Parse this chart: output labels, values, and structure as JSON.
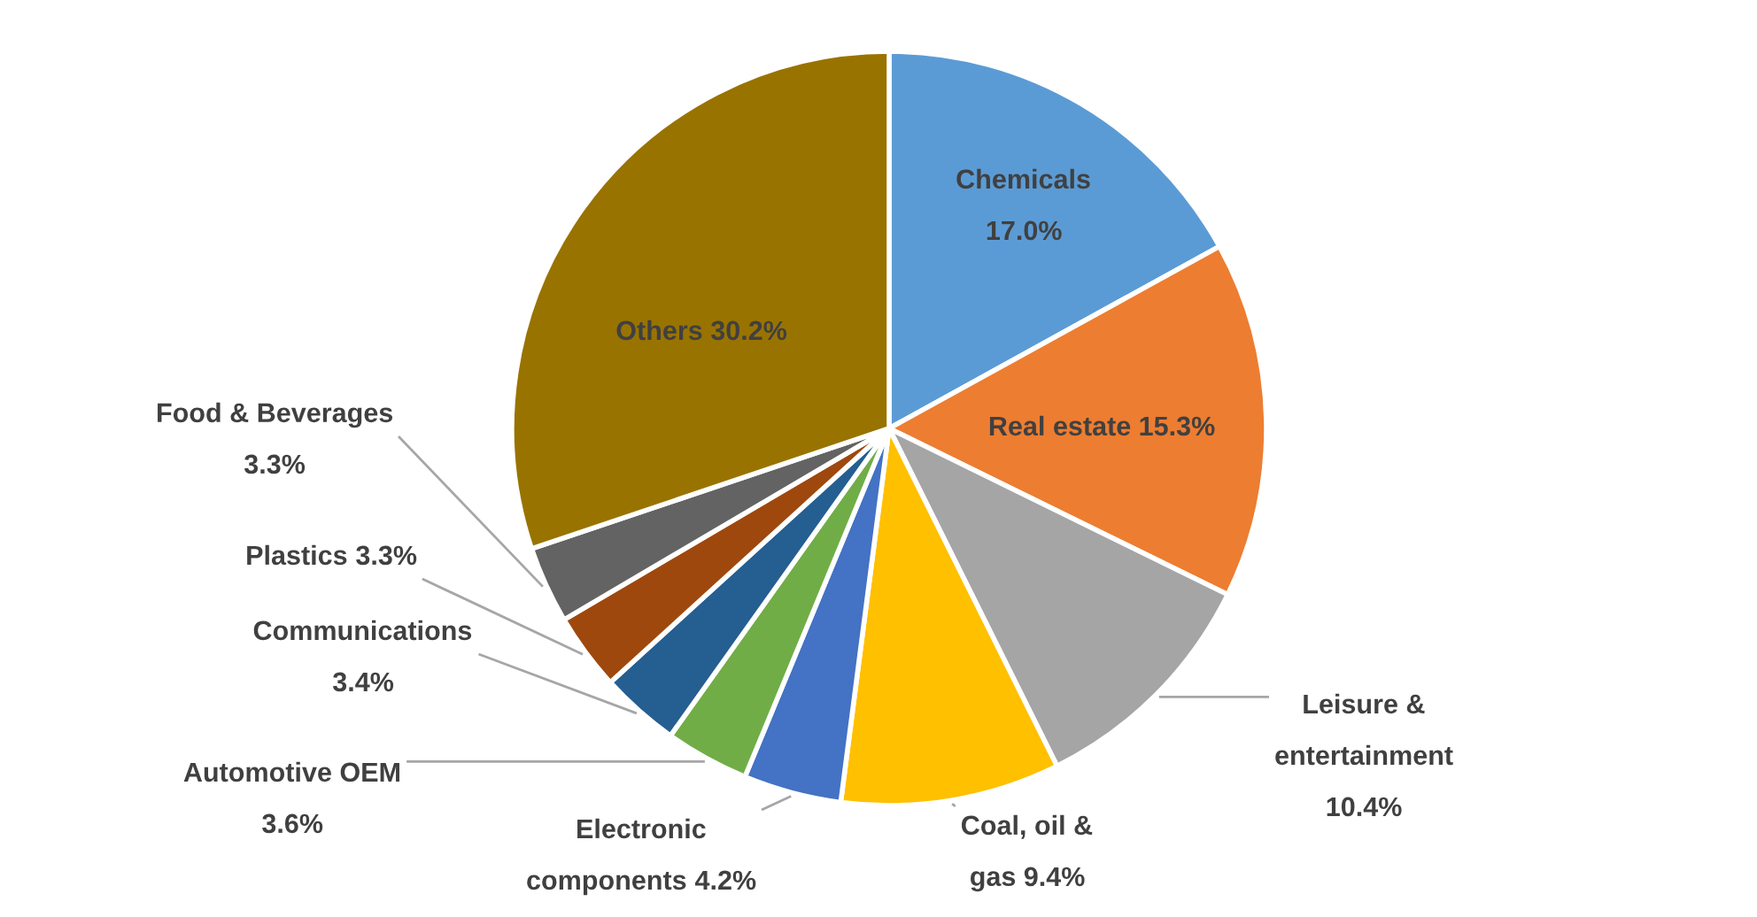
{
  "chart_data": {
    "type": "pie",
    "categories": [
      "Chemicals",
      "Real estate",
      "Leisure & entertainment",
      "Coal, oil & gas",
      "Electronic components",
      "Automotive OEM",
      "Communications",
      "Plastics",
      "Food & Beverages",
      "Others"
    ],
    "values": [
      17.0,
      15.3,
      10.4,
      9.4,
      4.2,
      3.6,
      3.4,
      3.3,
      3.3,
      30.2
    ],
    "value_labels": [
      "17.0%",
      "15.3%",
      "10.4%",
      "9.4%",
      "4.2%",
      "3.6%",
      "3.4%",
      "3.3%",
      "3.3%",
      "30.2%"
    ],
    "colors": [
      "#5b9bd5",
      "#ed7d31",
      "#a5a5a5",
      "#ffc000",
      "#4472c4",
      "#70ad47",
      "#255e91",
      "#9e480e",
      "#636363",
      "#997300"
    ]
  }
}
